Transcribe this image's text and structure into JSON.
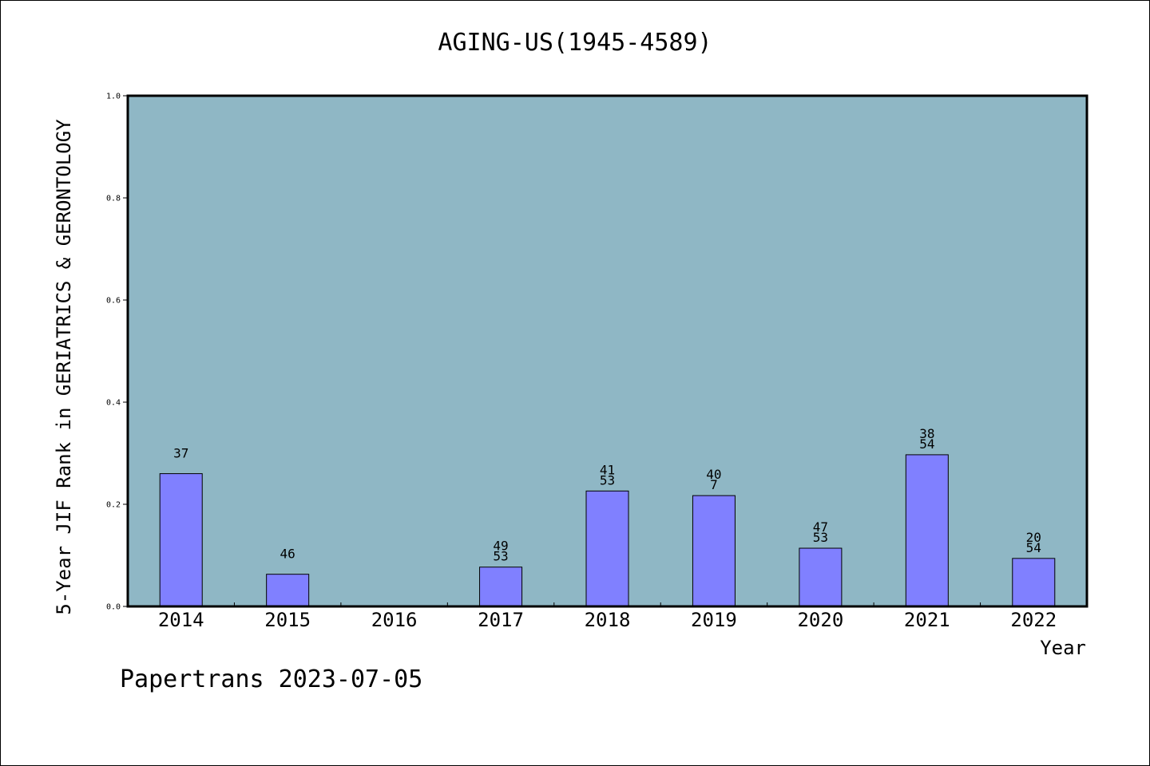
{
  "chart_data": {
    "type": "bar",
    "title": "AGING-US(1945-4589)",
    "xlabel": "Year",
    "ylabel": "5-Year JIF Rank in GERIATRICS & GERONTOLOGY",
    "ylim": [
      0,
      1.0
    ],
    "yticks": [
      "0.0",
      "0.2",
      "0.4",
      "0.6",
      "0.8",
      "1.0"
    ],
    "categories": [
      "2014",
      "2015",
      "2016",
      "2017",
      "2018",
      "2019",
      "2020",
      "2021",
      "2022"
    ],
    "values": [
      0.26,
      0.063,
      null,
      0.077,
      0.226,
      0.217,
      0.114,
      0.297,
      0.094
    ],
    "bar_labels": [
      [
        "37"
      ],
      [
        "46"
      ],
      [],
      [
        "49",
        "53"
      ],
      [
        "41",
        "53"
      ],
      [
        "40",
        "7"
      ],
      [
        "47",
        "53"
      ],
      [
        "38",
        "54"
      ],
      [
        "20",
        "54"
      ]
    ],
    "grid": false,
    "colors": {
      "plot_background": "#8fb7c5",
      "bar": "#8080ff",
      "axis": "#000000"
    }
  },
  "footer": {
    "text": "Papertrans 2023-07-05"
  }
}
